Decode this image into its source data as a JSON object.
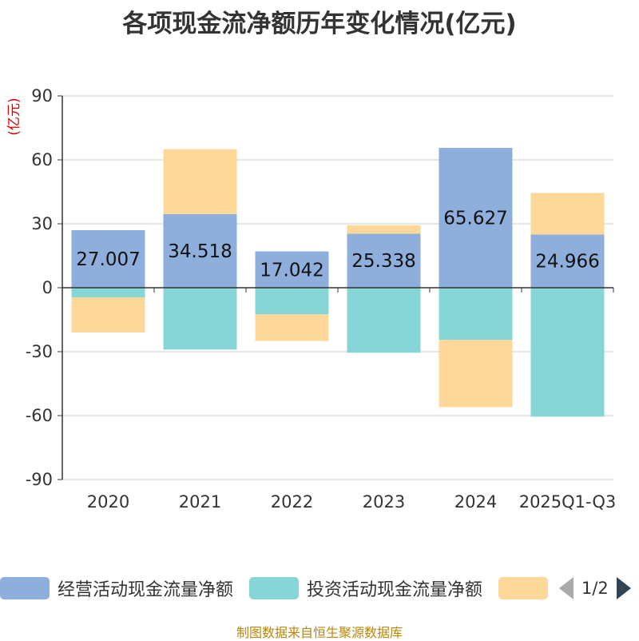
{
  "chart_data": {
    "type": "bar",
    "stacked": true,
    "title": "各项现金流净额历年变化情况(亿元)",
    "ylabel": "(亿元)",
    "ylim": [
      -90,
      90
    ],
    "yticks": [
      90,
      60,
      30,
      0,
      -30,
      -60,
      -90
    ],
    "categories": [
      "2020",
      "2021",
      "2022",
      "2023",
      "2024",
      "2025Q1-Q3"
    ],
    "series": [
      {
        "name": "经营活动现金流量净额",
        "color": "#8eaedb",
        "values": [
          27.007,
          34.518,
          17.042,
          25.338,
          65.627,
          24.966
        ],
        "labeled": true
      },
      {
        "name": "投资活动现金流量净额",
        "color": "#86d5d7",
        "values": [
          -4.5,
          -29.0,
          -12.5,
          -30.5,
          -24.5,
          -60.5
        ],
        "labeled": false
      },
      {
        "name": "",
        "color": "#fdd899",
        "values": [
          -16.5,
          30.5,
          -12.5,
          4.0,
          -31.5,
          19.5
        ],
        "labeled": false
      }
    ],
    "data_labels": [
      "27.007",
      "34.518",
      "17.042",
      "25.338",
      "65.627",
      "24.966"
    ]
  },
  "legend": {
    "items": [
      {
        "label": "经营活动现金流量净额",
        "color": "#8eaedb"
      },
      {
        "label": "投资活动现金流量净额",
        "color": "#86d5d7"
      },
      {
        "label": "",
        "color": "#fdd899"
      }
    ],
    "page_text": "1/2"
  },
  "source": "制图数据来自恒生聚源数据库"
}
